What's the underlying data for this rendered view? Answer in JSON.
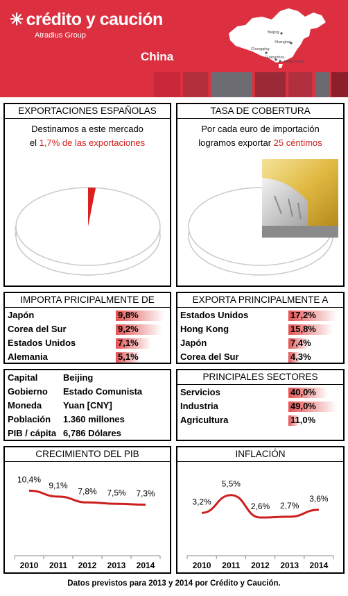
{
  "header": {
    "brand": "crédito y caución",
    "sub": "Atradius Group",
    "country": "China",
    "cities": [
      "Beijing",
      "Shanghai",
      "Chongqing",
      "Guangzhou",
      "Hong Kong"
    ]
  },
  "exports": {
    "title": "EXPORTACIONES ESPAÑOLAS",
    "line1": "Destinamos a este mercado",
    "line2_pre": "el",
    "line2_val": "1,7% de las exportaciones",
    "share": 0.017
  },
  "coverage": {
    "title": "TASA DE COBERTURA",
    "line1": "Por cada euro de importación",
    "line2_pre": "logramos exportar",
    "line2_val": "25 céntimos",
    "share": 0.25
  },
  "imports": {
    "title": "IMPORTA PRICIPALMENTE DE",
    "rows": [
      {
        "name": "Japón",
        "value": "9,8%",
        "num": 9.8
      },
      {
        "name": "Corea del Sur",
        "value": "9,2%",
        "num": 9.2
      },
      {
        "name": "Estados Unidos",
        "value": "7,1%",
        "num": 7.1
      },
      {
        "name": "Alemania",
        "value": "5,1%",
        "num": 5.1
      }
    ]
  },
  "exportsTo": {
    "title": "EXPORTA PRINCIPALMENTE A",
    "rows": [
      {
        "name": "Estados Unidos",
        "value": "17,2%",
        "num": 17.2
      },
      {
        "name": "Hong Kong",
        "value": "15,8%",
        "num": 15.8
      },
      {
        "name": "Japón",
        "value": "7,4%",
        "num": 7.4
      },
      {
        "name": "Corea del Sur",
        "value": "4,3%",
        "num": 4.3
      }
    ]
  },
  "facts": {
    "rows": [
      {
        "label": "Capital",
        "value": "Beijing"
      },
      {
        "label": "Gobierno",
        "value": "Estado Comunista"
      },
      {
        "label": "Moneda",
        "value": "Yuan [CNY]"
      },
      {
        "label": "Población",
        "value": "1.360 millones"
      },
      {
        "label": "PIB / cápita",
        "value": "6,786 Dólares"
      }
    ]
  },
  "sectors": {
    "title": "PRINCIPALES SECTORES",
    "rows": [
      {
        "name": "Servicios",
        "value": "40,0%",
        "num": 40.0
      },
      {
        "name": "Industria",
        "value": "49,0%",
        "num": 49.0
      },
      {
        "name": "Agricultura",
        "value": "11,0%",
        "num": 11.0
      }
    ]
  },
  "colors": {
    "brand": "#dc3040",
    "line": "#cc1f1f",
    "bar": "#e35353"
  },
  "chart_data": [
    {
      "type": "line",
      "title": "CRECIMIENTO DEL PIB",
      "categories": [
        "2010",
        "2011",
        "2012",
        "2013",
        "2014"
      ],
      "values": [
        10.4,
        9.1,
        7.8,
        7.5,
        7.3
      ],
      "labels": [
        "10,4%",
        "9,1%",
        "7,8%",
        "7,5%",
        "7,3%"
      ],
      "ylim": [
        0,
        12
      ]
    },
    {
      "type": "line",
      "title": "INFLACIÓN",
      "categories": [
        "2010",
        "2011",
        "2012",
        "2013",
        "2014"
      ],
      "values": [
        3.2,
        5.5,
        2.6,
        2.7,
        3.6
      ],
      "labels": [
        "3,2%",
        "5,5%",
        "2,6%",
        "2,7%",
        "3,6%"
      ],
      "ylim": [
        0,
        7
      ]
    }
  ],
  "footer": "Datos previstos para 2013 y 2014 por Crédito y Caución."
}
